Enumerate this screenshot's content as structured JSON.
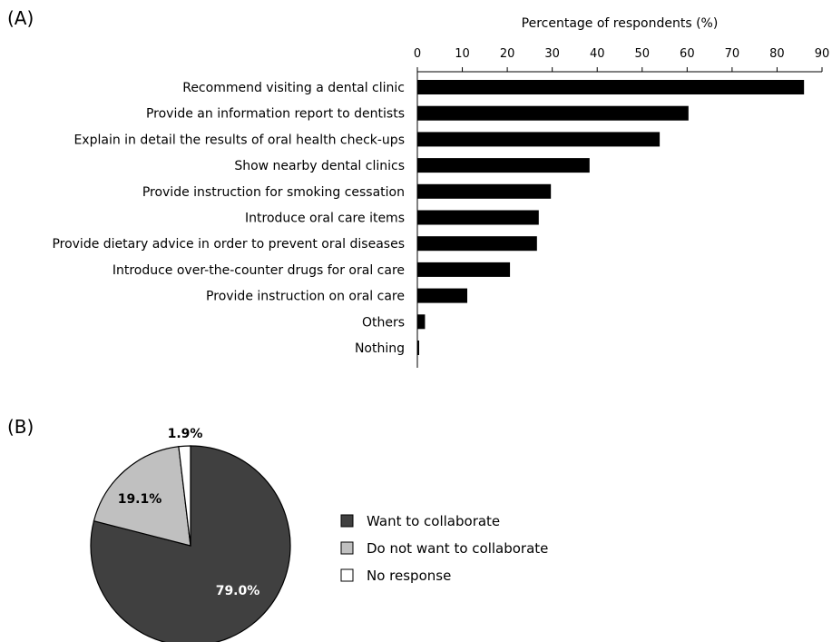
{
  "panels": {
    "a_label": "(A)",
    "b_label": "(B)"
  },
  "chart_data": [
    {
      "type": "bar",
      "orientation": "horizontal",
      "xlabel": "Percentage of respondents (%)",
      "xlim": [
        0,
        90
      ],
      "xticks": [
        0,
        10,
        20,
        30,
        40,
        50,
        60,
        70,
        80,
        90
      ],
      "bar_color": "#000000",
      "categories": [
        "Recommend visiting a dental clinic",
        "Provide an information report to dentists",
        "Explain in detail the results of oral health check-ups",
        "Show nearby dental clinics",
        "Provide instruction for smoking cessation",
        "Introduce oral care items",
        "Provide dietary advice in order to prevent oral diseases",
        "Introduce over-the-counter drugs for oral care",
        "Provide instruction on oral care",
        "Others",
        "Nothing"
      ],
      "values": [
        86,
        60.3,
        53.9,
        38.3,
        29.7,
        27,
        26.6,
        20.6,
        11.1,
        1.7,
        0.4
      ]
    },
    {
      "type": "pie",
      "slices": [
        {
          "label": "Want to collaborate",
          "value": 79.0,
          "display": "79.0%",
          "color": "#404040",
          "label_color": "#ffffff"
        },
        {
          "label": "Do not want to collaborate",
          "value": 19.1,
          "display": "19.1%",
          "color": "#c0c0c0",
          "label_color": "#000000"
        },
        {
          "label": "No response",
          "value": 1.9,
          "display": "1.9%",
          "color": "#ffffff",
          "label_color": "#000000"
        }
      ]
    }
  ]
}
